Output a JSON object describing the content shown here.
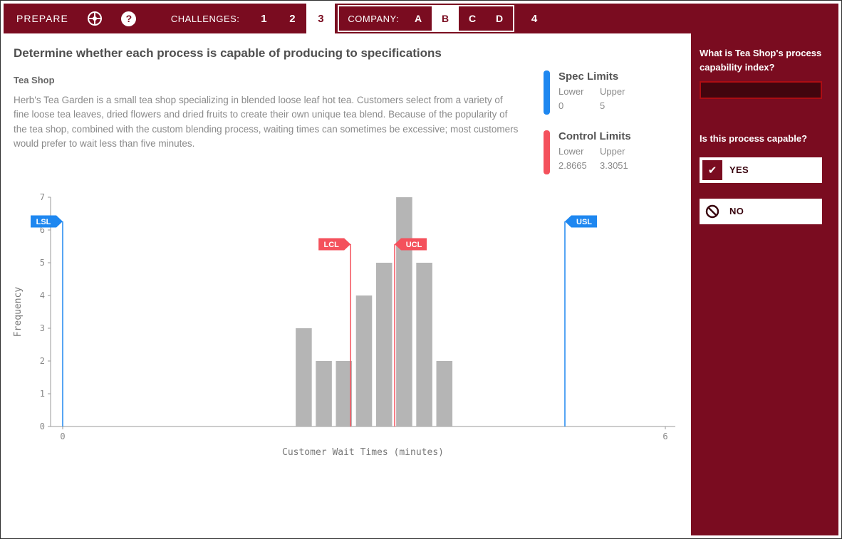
{
  "colors": {
    "maroon": "#7a0c20",
    "blue": "#1e87f0",
    "red": "#f4515c",
    "bar_gray": "#b5b5b5"
  },
  "nav": {
    "prepare_label": "PREPARE",
    "challenges_label": "CHALLENGES:",
    "company_label": "COMPANY:",
    "challenge_tabs": [
      {
        "label": "1",
        "active": false
      },
      {
        "label": "2",
        "active": false
      },
      {
        "label": "3",
        "active": true
      }
    ],
    "company_tabs": [
      {
        "label": "A",
        "active": false
      },
      {
        "label": "B",
        "active": true
      },
      {
        "label": "C",
        "active": false
      },
      {
        "label": "D",
        "active": false
      }
    ],
    "tab4_label": "4",
    "help_icon_glyph": "?"
  },
  "main": {
    "title": "Determine whether each process is capable of producing to specifications",
    "subtitle": "Tea Shop",
    "description": "Herb's Tea Garden is a small tea shop specializing in blended loose leaf hot tea. Customers select from a variety of fine loose tea leaves, dried flowers and dried fruits to create their own unique tea blend. Because of the popularity of the tea shop, combined with the custom blending process, waiting times can sometimes be excessive; most customers would prefer to wait less than five minutes."
  },
  "legend": {
    "spec": {
      "title": "Spec Limits",
      "lower_label": "Lower",
      "upper_label": "Upper",
      "lower": "0",
      "upper": "5"
    },
    "control": {
      "title": "Control Limits",
      "lower_label": "Lower",
      "upper_label": "Upper",
      "lower": "2.8665",
      "upper": "3.3051"
    }
  },
  "sidebar": {
    "question_capability_index": "What is Tea Shop's process capability index?",
    "capability_input_value": "",
    "question_capable": "Is this process capable?",
    "yes_label": "YES",
    "no_label": "NO",
    "check_icon_glyph": "✔"
  },
  "chart_data": {
    "type": "bar",
    "title": "",
    "xlabel": "Customer Wait Times (minutes)",
    "ylabel": "Frequency",
    "xlim": [
      -0.15,
      6.3
    ],
    "ylim": [
      0,
      7
    ],
    "x_ticks": [
      0,
      6
    ],
    "y_ticks": [
      0,
      1,
      2,
      3,
      4,
      5,
      6,
      7
    ],
    "grid": false,
    "bin_width": 0.2,
    "bin_centers": [
      2.4,
      2.6,
      2.8,
      3.0,
      3.2,
      3.4,
      3.6,
      3.8
    ],
    "counts": [
      3,
      2,
      2,
      4,
      5,
      7,
      5,
      2
    ],
    "bar_color": "#b5b5b5",
    "spec_limits": {
      "lower": 0,
      "upper": 5,
      "labels": [
        "LSL",
        "USL"
      ],
      "color": "#1e87f0"
    },
    "control_limits": {
      "lower": 2.8665,
      "upper": 3.3051,
      "labels": [
        "LCL",
        "UCL"
      ],
      "color": "#f4515c"
    }
  }
}
